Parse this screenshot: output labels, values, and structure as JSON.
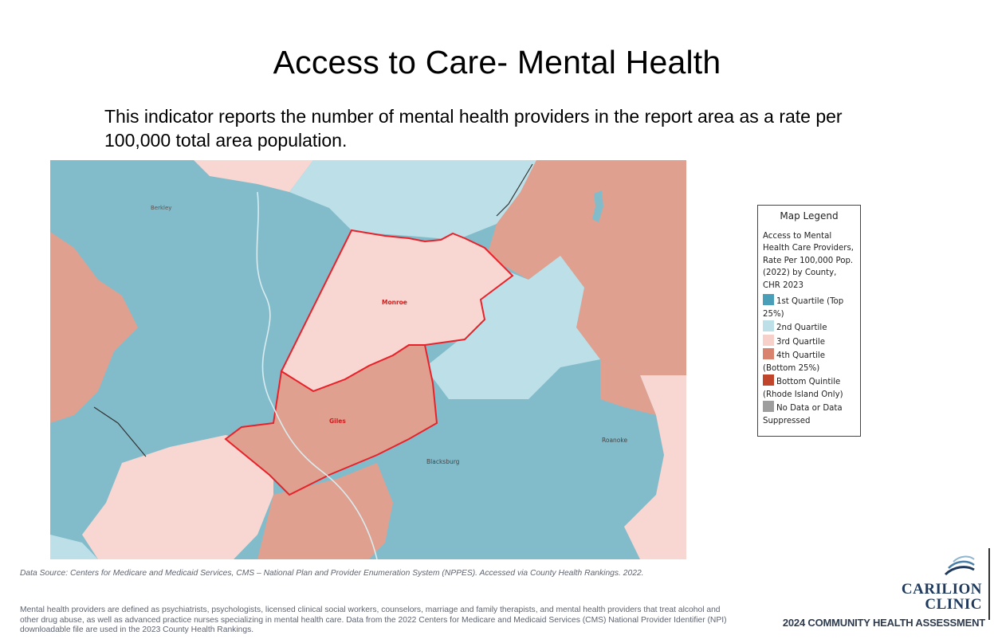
{
  "slide": {
    "title": "Access to Care- Mental Health",
    "subtitle": "This indicator reports the number of mental health providers in the report area as a rate per 100,000 total area population."
  },
  "map": {
    "labels": {
      "berkley": "Berkley",
      "monroe": "Monroe",
      "giles": "Giles",
      "blacksburg": "Blacksburg",
      "roanoke": "Roanoke"
    },
    "colors": {
      "q1": "#82bccb",
      "q2": "#bde0e8",
      "q3": "#f8d6d1",
      "q4": "#e0a090",
      "highlight": "#e8222a"
    }
  },
  "legend": {
    "title": "Map Legend",
    "description": "Access to Mental Health Care Providers, Rate Per 100,000 Pop. (2022) by County, CHR 2023",
    "items": [
      {
        "label": "1st Quartile (Top 25%)",
        "color": "#4a9fb8"
      },
      {
        "label": "2nd Quartile",
        "color": "#bde0e8"
      },
      {
        "label": "3rd Quartile",
        "color": "#f8d0ca"
      },
      {
        "label": "4th Quartile (Bottom 25%)",
        "color": "#d9826e"
      },
      {
        "label": "Bottom Quintile (Rhode Island Only)",
        "color": "#c0452b"
      },
      {
        "label": "No Data or Data Suppressed",
        "color": "#9e9e9e"
      }
    ]
  },
  "footer": {
    "source": "Data Source: Centers for Medicare and Medicaid Services, CMS – National Plan and Provider Enumeration System (NPPES). Accessed via County Health Rankings. 2022.",
    "definition": "Mental health providers are defined as psychiatrists, psychologists, licensed clinical social workers, counselors, marriage and family therapists, and mental health providers that treat alcohol and other drug abuse, as well as advanced practice nurses specializing in mental health care. Data from the 2022 Centers for Medicare and Medicaid Services (CMS) National Provider Identifier (NPI) downloadable file are used in the 2023 County Health Rankings.",
    "logo_line1": "CARILION",
    "logo_line2": "CLINIC",
    "assessment": "2024 COMMUNITY HEALTH ASSESSMENT"
  }
}
